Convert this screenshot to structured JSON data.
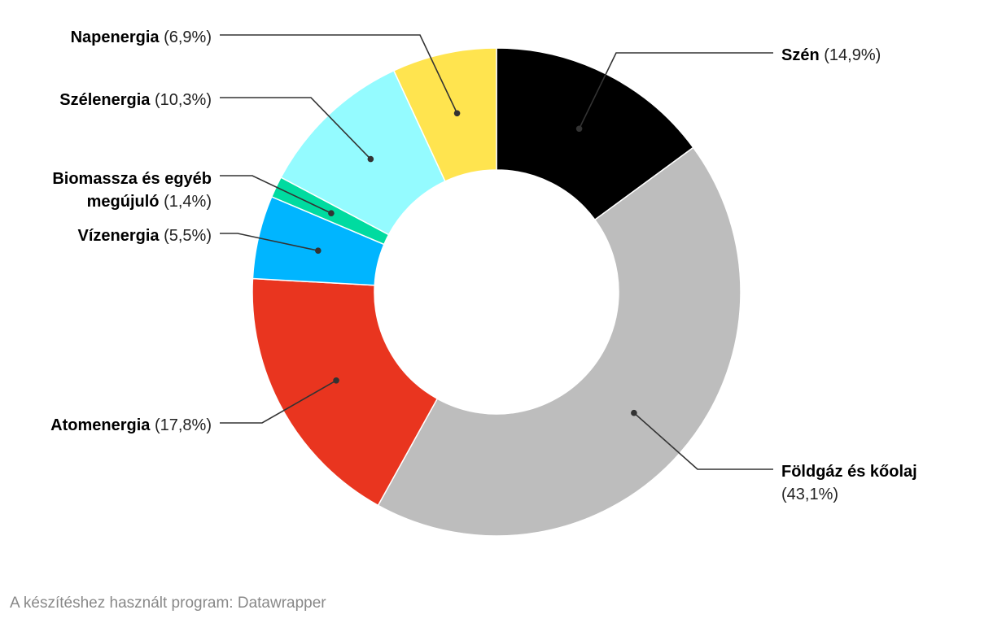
{
  "chart_data": {
    "type": "pie",
    "donut": true,
    "slices": [
      {
        "name": "Szén",
        "value_label": "(14,9%)",
        "value": 14.9,
        "color": "#000000"
      },
      {
        "name": "Földgáz és kőolaj",
        "value_label": "(43,1%)",
        "value": 43.1,
        "color": "#bdbdbd"
      },
      {
        "name": "Atomenergia",
        "value_label": "(17,8%)",
        "value": 17.8,
        "color": "#e9351f"
      },
      {
        "name": "Vízenergia",
        "value_label": "(5,5%)",
        "value": 5.5,
        "color": "#00b5ff"
      },
      {
        "name": "Biomassza és egyéb megújuló",
        "name_lines": [
          "Biomassza és egyéb",
          "megújuló"
        ],
        "value_label": "(1,4%)",
        "value": 1.4,
        "color": "#00dba0"
      },
      {
        "name": "Szélenergia",
        "value_label": "(10,3%)",
        "value": 10.3,
        "color": "#94fbff"
      },
      {
        "name": "Napenergia",
        "value_label": "(6,9%)",
        "value": 6.9,
        "color": "#ffe44f"
      }
    ]
  },
  "footer": {
    "credit": "A készítéshez használt program: Datawrapper"
  }
}
